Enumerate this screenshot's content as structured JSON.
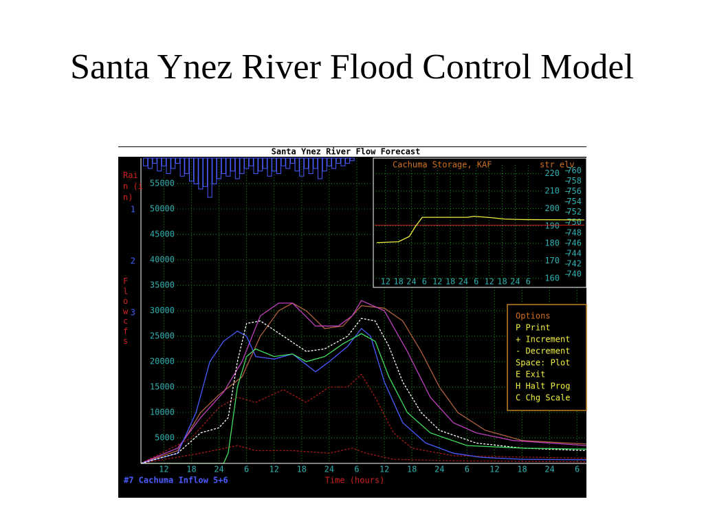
{
  "title": "Santa Ynez River Flood Control Model",
  "screen": {
    "header": "Santa Ynez River Flow Forecast",
    "status": "#7 Cachuma Inflow 5+6",
    "options": {
      "title": "Options",
      "items": [
        "P Print",
        "+ Increment",
        "- Decrement",
        "Space: Plot",
        "E Exit",
        "H Halt Prog",
        "C Chg Scale"
      ]
    }
  },
  "chart_data": [
    {
      "type": "line",
      "ylabel": "Flow cfs",
      "xlabel": "Time (hours)",
      "y2label": "Rain (in)",
      "xlim": [
        7,
        104
      ],
      "ylim": [
        0,
        60000
      ],
      "y2lim": [
        0,
        5.92
      ],
      "y2_inverted": true,
      "grid": true,
      "xticks": [
        12,
        18,
        24,
        {
          "value": 30,
          "label": "6"
        },
        {
          "value": 36,
          "label": "12"
        },
        {
          "value": 42,
          "label": "18"
        },
        {
          "value": 48,
          "label": "24"
        },
        {
          "value": 54,
          "label": "6"
        },
        {
          "value": 60,
          "label": "12"
        },
        {
          "value": 66,
          "label": "18"
        },
        {
          "value": 72,
          "label": "24"
        },
        {
          "value": 78,
          "label": "6"
        },
        {
          "value": 84,
          "label": "12"
        },
        {
          "value": 90,
          "label": "18"
        },
        {
          "value": 96,
          "label": "24"
        },
        {
          "value": 102,
          "label": "6"
        }
      ],
      "yticks": [
        5000,
        10000,
        15000,
        20000,
        25000,
        30000,
        35000,
        40000,
        45000,
        50000,
        55000
      ],
      "y2ticks": [
        1,
        2,
        3
      ],
      "series": [
        {
          "type": "bar",
          "axis": "y2",
          "color": "#4a5cff",
          "x": [
            8,
            9,
            10,
            11,
            12,
            13,
            14,
            15,
            16,
            17,
            18,
            19,
            20,
            21,
            22,
            23,
            24,
            25,
            26,
            27,
            28,
            29,
            30,
            31,
            32,
            33,
            34,
            35,
            36,
            37,
            38,
            39,
            40,
            41,
            42,
            43,
            44,
            45,
            46,
            47,
            48,
            49,
            50,
            51,
            52,
            53
          ],
          "values": [
            0.15,
            0.2,
            0.1,
            0.25,
            0.15,
            0.3,
            0.2,
            0.1,
            0.35,
            0.3,
            0.45,
            0.5,
            0.6,
            0.55,
            0.76,
            0.5,
            0.4,
            0.3,
            0.35,
            0.25,
            0.4,
            0.3,
            0.2,
            0.15,
            0.3,
            0.25,
            0.2,
            0.35,
            0.25,
            0.3,
            0.15,
            0.2,
            0.1,
            0.25,
            0.35,
            0.2,
            0.3,
            0.2,
            0.4,
            0.25,
            0.15,
            0.2,
            0.1,
            0.15,
            0.1,
            0.05
          ]
        },
        {
          "color": "#a01818",
          "dash": true,
          "x": [
            7,
            18,
            24,
            28,
            32,
            38,
            43,
            48,
            52,
            55,
            58,
            62,
            66,
            75,
            104
          ],
          "values": [
            0,
            5000,
            11000,
            13000,
            12000,
            14500,
            12000,
            15000,
            15000,
            17500,
            13000,
            6000,
            3000,
            1500,
            1000
          ]
        },
        {
          "color": "#a01818",
          "dash": true,
          "x": [
            7,
            20,
            28,
            32,
            40,
            48,
            53,
            56,
            62,
            75,
            104
          ],
          "values": [
            0,
            2000,
            3500,
            2500,
            2500,
            2000,
            3000,
            2000,
            800,
            500,
            300
          ]
        },
        {
          "color": "#b06040",
          "x": [
            7,
            15,
            20,
            24,
            29,
            33,
            37,
            40,
            43,
            47,
            51,
            55,
            60,
            64,
            68,
            72,
            76,
            82,
            90,
            104
          ],
          "values": [
            0,
            2500,
            10000,
            13500,
            17000,
            25000,
            30000,
            31500,
            30000,
            26500,
            27000,
            31000,
            30500,
            28000,
            22000,
            15000,
            10000,
            6500,
            4500,
            3800
          ]
        },
        {
          "color": "#c040c0",
          "x": [
            7,
            15,
            20,
            25,
            29,
            33,
            37,
            40,
            45,
            50,
            53,
            55,
            60,
            65,
            70,
            75,
            80,
            88,
            96,
            104
          ],
          "values": [
            0,
            3000,
            9000,
            14000,
            20000,
            29000,
            31500,
            31500,
            27000,
            27000,
            29000,
            32000,
            30000,
            22000,
            13000,
            8000,
            6000,
            4500,
            4000,
            3500
          ]
        },
        {
          "color": "#4a5cff",
          "x": [
            7,
            15,
            19,
            22,
            25,
            28,
            30,
            32,
            36,
            40,
            45,
            48,
            52,
            55,
            57,
            60,
            64,
            69,
            75,
            81,
            90,
            104
          ],
          "values": [
            0,
            2000,
            10000,
            20000,
            24000,
            26000,
            25000,
            21000,
            20500,
            21500,
            18000,
            20000,
            23000,
            26500,
            25000,
            16000,
            8000,
            4000,
            2000,
            1200,
            800,
            700
          ]
        },
        {
          "color": "#ffffff",
          "dash": true,
          "x": [
            7,
            15,
            20,
            24,
            26,
            28,
            30,
            33,
            38,
            43,
            47,
            52,
            55,
            58,
            61,
            64,
            68,
            72,
            80,
            90,
            104
          ],
          "values": [
            0,
            2000,
            6000,
            7000,
            9000,
            20000,
            27500,
            28000,
            25000,
            22000,
            22500,
            25000,
            28500,
            28000,
            23000,
            16000,
            10000,
            6500,
            4000,
            3000,
            2500
          ]
        },
        {
          "color": "#40e060",
          "x": [
            7,
            20,
            25,
            26,
            28,
            30,
            32,
            36,
            40,
            43,
            47,
            51,
            55,
            58,
            61,
            65,
            70,
            78,
            90,
            104
          ],
          "values": [
            0,
            0,
            0,
            2000,
            15000,
            21000,
            22500,
            21000,
            21500,
            20000,
            21000,
            23500,
            25500,
            24000,
            17000,
            10000,
            6000,
            3500,
            3000,
            2800
          ]
        }
      ]
    },
    {
      "type": "line",
      "title": "Cachuma Storage, KAF",
      "y2label": "str elv",
      "xlim": [
        7,
        104
      ],
      "ylim": [
        156,
        225
      ],
      "y2lim": [
        737.9,
        761.1
      ],
      "grid": true,
      "xticks": [
        12,
        18,
        24,
        {
          "value": 30,
          "label": "6"
        },
        {
          "value": 36,
          "label": "12"
        },
        {
          "value": 42,
          "label": "18"
        },
        {
          "value": 48,
          "label": "24"
        },
        {
          "value": 54,
          "label": "6"
        },
        {
          "value": 60,
          "label": "12"
        },
        {
          "value": 66,
          "label": "18"
        },
        {
          "value": 72,
          "label": "24"
        },
        {
          "value": 78,
          "label": "6"
        }
      ],
      "yticks": [
        160,
        170,
        180,
        190,
        200,
        210,
        220
      ],
      "y2ticks": [
        740,
        742,
        744,
        746,
        748,
        750,
        752,
        754,
        756,
        758,
        760
      ],
      "reference": {
        "value": 190.5,
        "color": "#c02020"
      },
      "series": [
        {
          "color": "#f0f040",
          "x": [
            8,
            18,
            23,
            26,
            29,
            40,
            50,
            53,
            61,
            67,
            75,
            104
          ],
          "values": [
            180.5,
            181,
            184,
            190,
            195,
            195,
            195,
            195.6,
            194.8,
            194,
            193.7,
            193.5
          ]
        }
      ]
    }
  ]
}
